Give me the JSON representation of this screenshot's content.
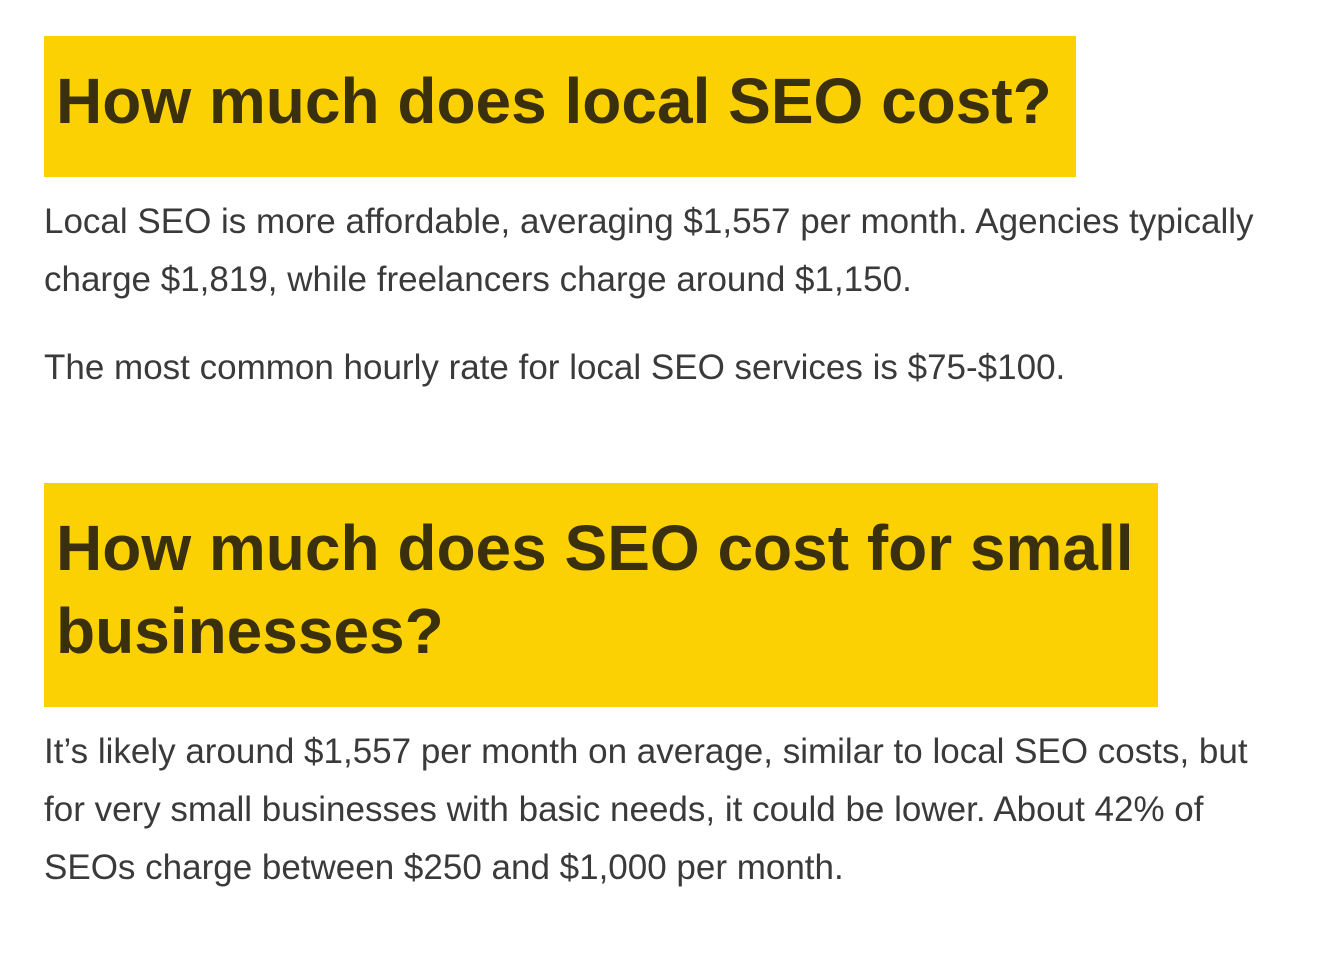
{
  "theme": {
    "background": "#ffffff",
    "highlight_color": "#fbd104",
    "heading_text_color": "#3b300d",
    "body_text_color": "#3a3a3a"
  },
  "article": {
    "sections": [
      {
        "heading": "How much does local SEO cost?",
        "paragraphs": [
          "Local SEO is more affordable, averaging $1,557 per month. Agencies typically\ncharge $1,819, while freelancers charge around $1,150.",
          "The most common hourly rate for local SEO services is $75-$100."
        ]
      },
      {
        "heading": "How much does SEO cost for small\nbusinesses?",
        "paragraphs": [
          "It’s likely around $1,557 per month on average, similar to local SEO costs, but\nfor very small businesses with basic needs, it could be lower. About 42% of\nSEOs charge between $250 and $1,000 per month."
        ]
      }
    ]
  }
}
